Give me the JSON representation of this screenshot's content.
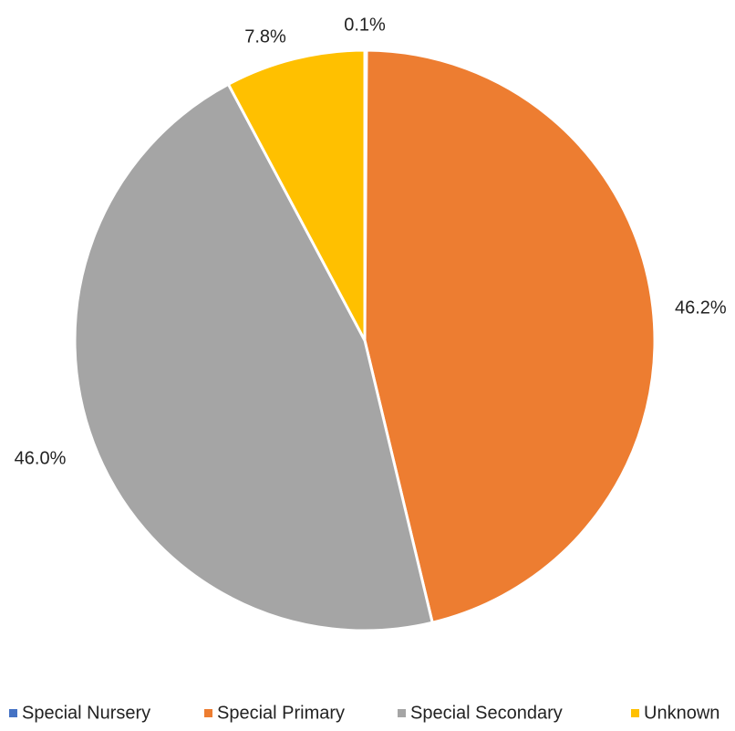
{
  "chart_data": {
    "type": "pie",
    "title": "",
    "start_angle_deg": 0,
    "direction": "clockwise",
    "legend_position": "bottom",
    "slices": [
      {
        "label": "Special Nursery",
        "value": 0.1,
        "display": "0.1%",
        "color": "#4472C4"
      },
      {
        "label": "Special Primary",
        "value": 46.2,
        "display": "46.2%",
        "color": "#ED7D31"
      },
      {
        "label": "Special Secondary",
        "value": 46.0,
        "display": "46.0%",
        "color": "#A5A5A5"
      },
      {
        "label": "Unknown",
        "value": 7.8,
        "display": "7.8%",
        "color": "#FFC000"
      }
    ]
  }
}
